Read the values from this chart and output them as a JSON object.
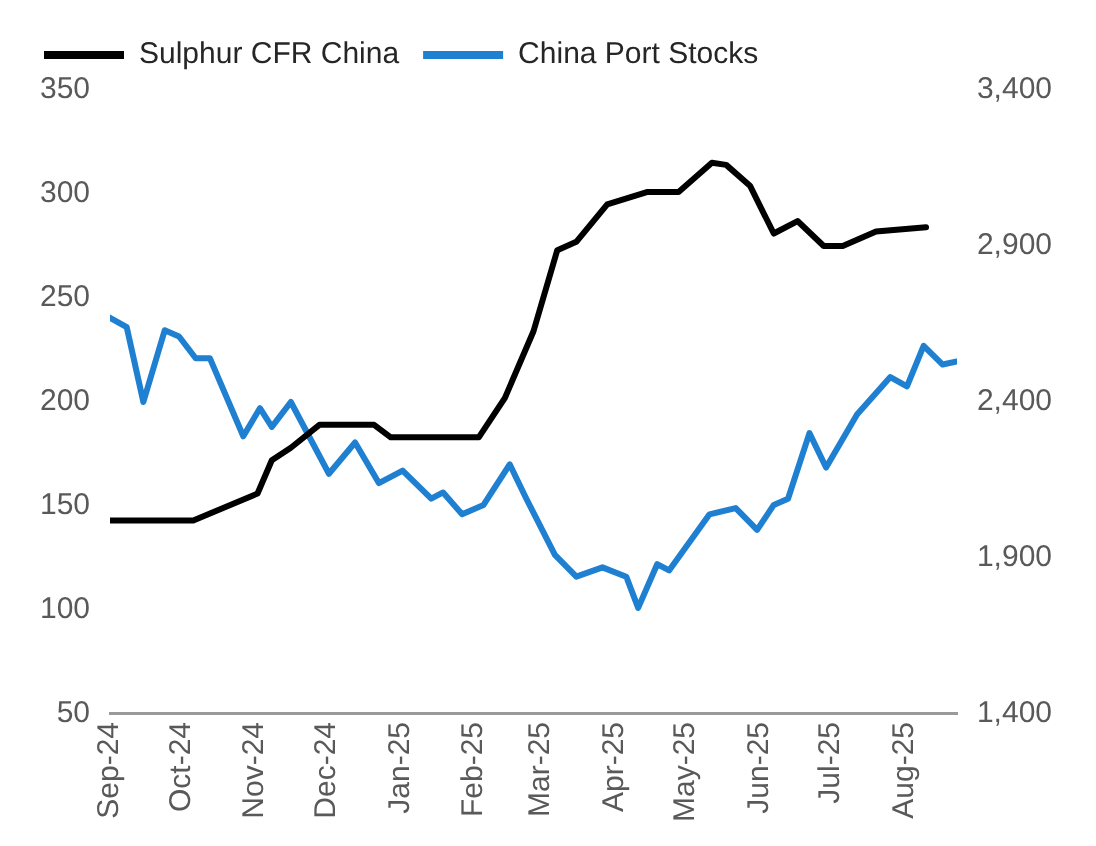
{
  "chart_data": {
    "type": "line",
    "legend": "top",
    "grid": false,
    "marker": "none",
    "line_style": "solid",
    "xlim": [
      "2024-09-01",
      "2025-08-23"
    ],
    "xticks": [
      {
        "value": "2024-09-01",
        "label": "Sep-24"
      },
      {
        "value": "2024-10-01",
        "label": "Oct-24"
      },
      {
        "value": "2024-11-01",
        "label": "Nov-24"
      },
      {
        "value": "2024-12-01",
        "label": "Dec-24"
      },
      {
        "value": "2025-01-01",
        "label": "Jan-25"
      },
      {
        "value": "2025-02-01",
        "label": "Feb-25"
      },
      {
        "value": "2025-03-01",
        "label": "Mar-25"
      },
      {
        "value": "2025-04-01",
        "label": "Apr-25"
      },
      {
        "value": "2025-05-01",
        "label": "May-25"
      },
      {
        "value": "2025-06-01",
        "label": "Jun-25"
      },
      {
        "value": "2025-07-01",
        "label": "Jul-25"
      },
      {
        "value": "2025-08-01",
        "label": "Aug-25"
      }
    ],
    "ylim": [
      50,
      350
    ],
    "yticks": [
      50,
      100,
      150,
      200,
      250,
      300,
      350
    ],
    "y2lim": [
      1400,
      3400
    ],
    "y2ticks": [
      {
        "value": 1400,
        "label": "1,400"
      },
      {
        "value": 1900,
        "label": "1,900"
      },
      {
        "value": 2400,
        "label": "2,400"
      },
      {
        "value": 2900,
        "label": "2,900"
      },
      {
        "value": 3400,
        "label": "3,400"
      }
    ],
    "series": [
      {
        "name": "Sulphur CFR China",
        "color": "#000000",
        "axis": "y",
        "x": [
          "2024-09-01",
          "2024-10-06",
          "2024-11-02",
          "2024-11-08",
          "2024-11-16",
          "2024-11-28",
          "2024-12-21",
          "2024-12-28",
          "2025-02-03",
          "2025-02-14",
          "2025-02-26",
          "2025-03-08",
          "2025-03-16",
          "2025-03-29",
          "2025-04-15",
          "2025-04-28",
          "2025-05-12",
          "2025-05-18",
          "2025-05-28",
          "2025-06-07",
          "2025-06-17",
          "2025-06-28",
          "2025-07-06",
          "2025-07-20",
          "2025-08-10"
        ],
        "values": [
          143,
          143,
          156,
          172,
          178,
          189,
          189,
          183,
          183,
          202,
          234,
          273,
          277,
          295,
          301,
          301,
          315,
          314,
          304,
          281,
          287,
          275,
          275,
          282,
          284
        ]
      },
      {
        "name": "China Port Stocks",
        "color": "#1f7fd0",
        "axis": "y2",
        "x": [
          "2024-09-01",
          "2024-09-08",
          "2024-09-15",
          "2024-09-24",
          "2024-09-30",
          "2024-10-07",
          "2024-10-13",
          "2024-10-27",
          "2024-11-03",
          "2024-11-08",
          "2024-11-16",
          "2024-12-02",
          "2024-12-13",
          "2024-12-23",
          "2025-01-02",
          "2025-01-14",
          "2025-01-19",
          "2025-01-27",
          "2025-02-05",
          "2025-02-16",
          "2025-02-23",
          "2025-03-07",
          "2025-03-16",
          "2025-03-27",
          "2025-04-06",
          "2025-04-11",
          "2025-04-19",
          "2025-04-24",
          "2025-05-11",
          "2025-05-22",
          "2025-05-31",
          "2025-06-07",
          "2025-06-13",
          "2025-06-22",
          "2025-06-29",
          "2025-07-12",
          "2025-07-26",
          "2025-08-02",
          "2025-08-09",
          "2025-08-17",
          "2025-08-23"
        ],
        "values": [
          2670,
          2640,
          2400,
          2630,
          2610,
          2540,
          2540,
          2290,
          2380,
          2320,
          2400,
          2170,
          2270,
          2140,
          2180,
          2090,
          2110,
          2040,
          2070,
          2200,
          2090,
          1910,
          1840,
          1870,
          1840,
          1740,
          1880,
          1860,
          2040,
          2060,
          1990,
          2070,
          2090,
          2300,
          2190,
          2360,
          2480,
          2450,
          2580,
          2520,
          2530
        ]
      }
    ]
  }
}
